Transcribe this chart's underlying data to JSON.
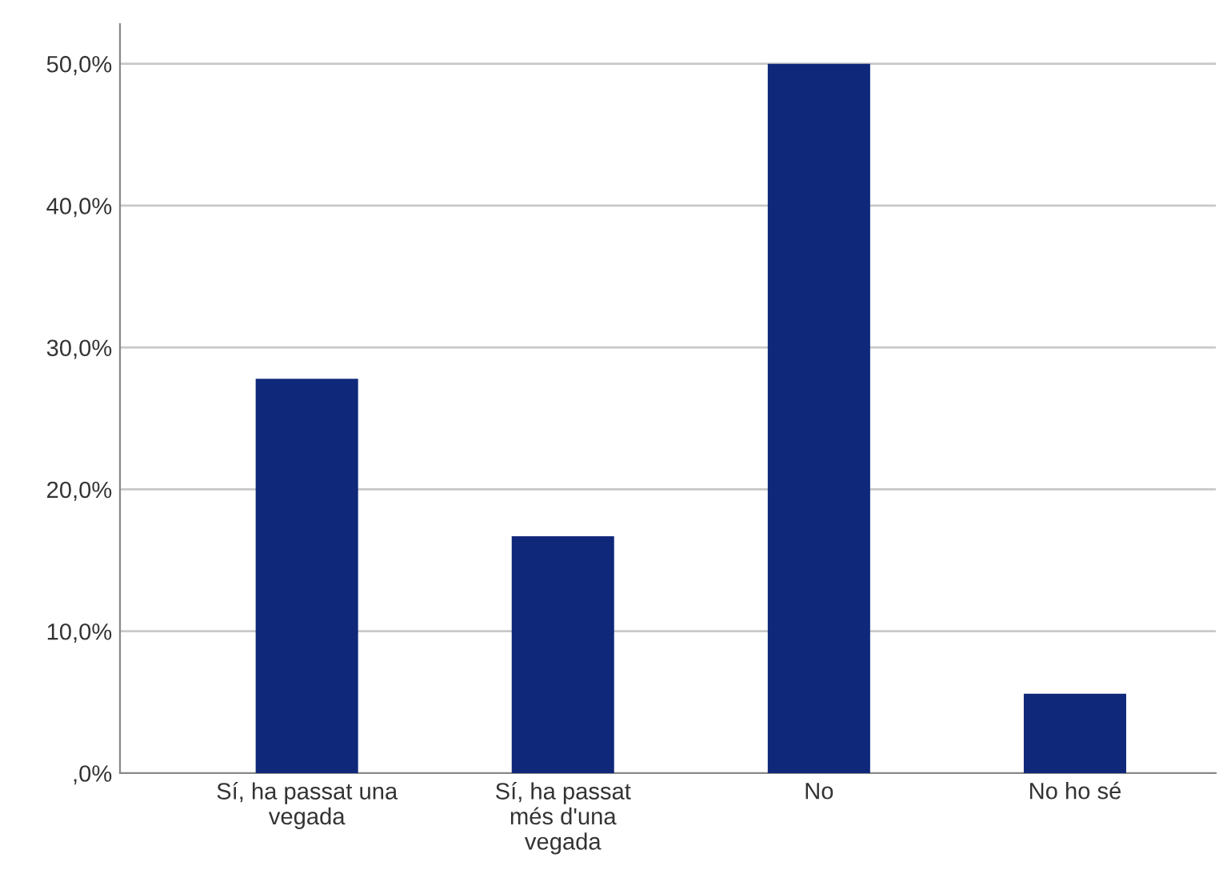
{
  "chart_data": {
    "type": "bar",
    "categories": [
      "Sí, ha passat una\nvegada",
      "Sí, ha passat\nmés d'una\nvegada",
      "No",
      "No ho sé"
    ],
    "values": [
      27.8,
      16.7,
      50.0,
      5.6
    ],
    "color": "#10287a",
    "ylim": [
      0,
      52.8
    ],
    "yticks": [
      {
        "value": 0,
        "label": ",0%"
      },
      {
        "value": 10,
        "label": "10,0%"
      },
      {
        "value": 20,
        "label": "20,0%"
      },
      {
        "value": 30,
        "label": "30,0%"
      },
      {
        "value": 40,
        "label": "40,0%"
      },
      {
        "value": 50,
        "label": "50,0%"
      }
    ],
    "grid": "y"
  }
}
